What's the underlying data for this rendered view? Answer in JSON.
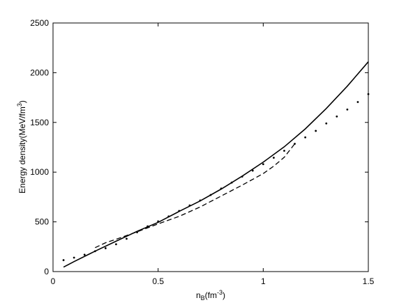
{
  "chart_data": {
    "type": "line",
    "title": "",
    "xlabel_parts": {
      "base": "n",
      "sub": "B",
      "open": "(fm",
      "sup": "-3",
      "close": ")"
    },
    "ylabel_parts": {
      "base": "Energy density(MeV/fm",
      "sup": "3",
      "close": ")"
    },
    "xlim": [
      0,
      1.5
    ],
    "ylim": [
      0,
      2500
    ],
    "xticks": [
      0,
      0.5,
      1,
      1.5
    ],
    "xtick_labels": [
      "0",
      "0.5",
      "1",
      "1.5"
    ],
    "yticks": [
      0,
      500,
      1000,
      1500,
      2000,
      2500
    ],
    "ytick_labels": [
      "0",
      "500",
      "1000",
      "1500",
      "2000",
      "2500"
    ],
    "grid": false,
    "legend": "none",
    "series": [
      {
        "style": "solid",
        "color": "#000000",
        "x": [
          0.05,
          0.1,
          0.2,
          0.3,
          0.4,
          0.5,
          0.6,
          0.7,
          0.8,
          0.9,
          1.0,
          1.1,
          1.2,
          1.3,
          1.4,
          1.5
        ],
        "y": [
          45,
          100,
          205,
          305,
          405,
          495,
          605,
          710,
          830,
          960,
          1100,
          1255,
          1435,
          1640,
          1865,
          2110
        ]
      },
      {
        "style": "dashed",
        "color": "#000000",
        "x": [
          0.2,
          0.25,
          0.3,
          0.4,
          0.5,
          0.6,
          0.7,
          0.8,
          0.9,
          1.0,
          1.05,
          1.1,
          1.15
        ],
        "y": [
          240,
          290,
          325,
          400,
          480,
          555,
          650,
          760,
          870,
          985,
          1060,
          1150,
          1285
        ]
      },
      {
        "style": "dotted",
        "color": "#000000",
        "x": [
          0.05,
          0.1,
          0.15,
          0.2,
          0.25,
          0.3,
          0.35,
          0.4,
          0.45,
          0.5,
          0.55,
          0.6,
          0.65,
          0.7,
          0.75,
          0.8,
          0.85,
          0.9,
          0.95,
          1.0,
          1.05,
          1.1,
          1.15,
          1.2,
          1.25,
          1.3,
          1.35,
          1.4,
          1.45,
          1.5
        ],
        "y": [
          115,
          140,
          170,
          205,
          235,
          275,
          330,
          395,
          455,
          505,
          555,
          610,
          665,
          715,
          770,
          835,
          895,
          955,
          1015,
          1080,
          1145,
          1215,
          1285,
          1350,
          1415,
          1490,
          1560,
          1630,
          1705,
          1785
        ]
      }
    ]
  }
}
